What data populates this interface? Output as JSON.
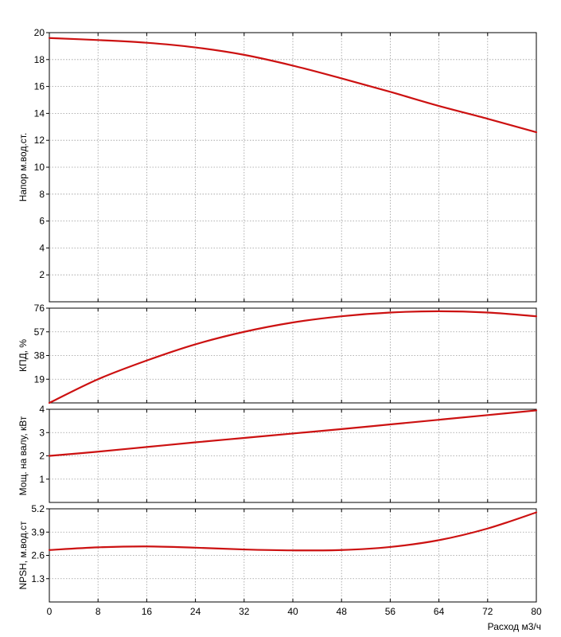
{
  "chart_data": {
    "type": "line",
    "shared_x_axis": {
      "label": "Расход м3/ч",
      "range": [
        0,
        80
      ],
      "ticks": [
        0,
        8,
        16,
        24,
        32,
        40,
        48,
        56,
        64,
        72,
        80
      ]
    },
    "line_color": "#cc1111",
    "grid": true,
    "panels": [
      {
        "id": "head",
        "ylabel": "Напор м.вод.ст.",
        "ylim": [
          0,
          20
        ],
        "yticks": [
          2,
          4,
          6,
          8,
          10,
          12,
          14,
          16,
          18,
          20
        ],
        "series": [
          {
            "x": [
              0,
              8,
              16,
              24,
              32,
              40,
              48,
              56,
              64,
              72,
              80
            ],
            "y": [
              19.6,
              19.45,
              19.25,
              18.9,
              18.35,
              17.55,
              16.6,
              15.6,
              14.55,
              13.6,
              12.6
            ]
          }
        ]
      },
      {
        "id": "efficiency",
        "ylabel": "КПД, %",
        "ylim": [
          0,
          76
        ],
        "yticks": [
          19,
          38,
          57,
          76
        ],
        "series": [
          {
            "x": [
              0,
              8,
              16,
              24,
              32,
              40,
              48,
              56,
              64,
              72,
              80
            ],
            "y": [
              0,
              19,
              34,
              47,
              57,
              64.5,
              69.5,
              72.5,
              73.5,
              72.5,
              69.5
            ]
          }
        ]
      },
      {
        "id": "power",
        "ylabel": "Мощ. на валу, кВт",
        "ylim": [
          0,
          4
        ],
        "yticks": [
          1,
          2,
          3,
          4
        ],
        "series": [
          {
            "x": [
              0,
              8,
              16,
              24,
              32,
              40,
              48,
              56,
              64,
              72,
              80
            ],
            "y": [
              2.0,
              2.18,
              2.38,
              2.58,
              2.77,
              2.96,
              3.15,
              3.35,
              3.55,
              3.75,
              3.95
            ]
          }
        ]
      },
      {
        "id": "npsh",
        "ylabel": "NPSH, м.вод.ст",
        "ylim": [
          0,
          5.2
        ],
        "yticks": [
          1.3,
          2.6,
          3.9,
          5.2
        ],
        "series": [
          {
            "x": [
              0,
              8,
              16,
              24,
              32,
              40,
              48,
              56,
              64,
              72,
              80
            ],
            "y": [
              2.9,
              3.05,
              3.1,
              3.03,
              2.93,
              2.88,
              2.9,
              3.07,
              3.45,
              4.1,
              5.0
            ]
          }
        ]
      }
    ]
  }
}
